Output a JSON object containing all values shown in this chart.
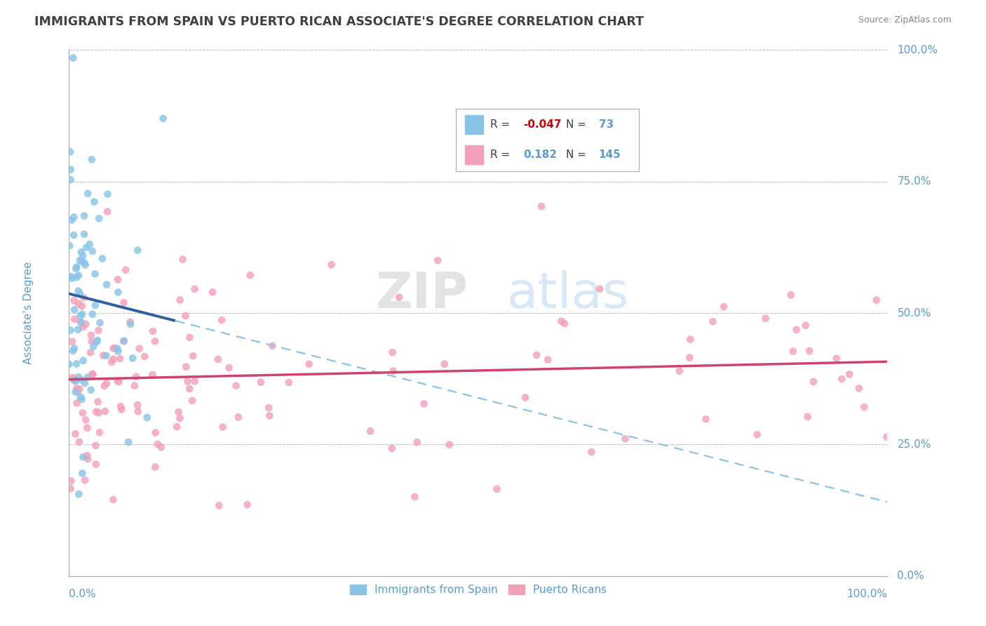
{
  "title": "IMMIGRANTS FROM SPAIN VS PUERTO RICAN ASSOCIATE'S DEGREE CORRELATION CHART",
  "source": "Source: ZipAtlas.com",
  "ylabel": "Associate's Degree",
  "legend_blue_r": "-0.047",
  "legend_blue_n": "73",
  "legend_pink_r": "0.182",
  "legend_pink_n": "145",
  "blue_color": "#89C4E8",
  "blue_line_solid_color": "#2E5FA3",
  "blue_line_dash_color": "#89C4E8",
  "pink_color": "#F4A0B8",
  "pink_line_color": "#D0436A",
  "background_color": "#FFFFFF",
  "grid_color": "#BBBBBB",
  "title_color": "#404040",
  "axis_label_color": "#5B9BD5",
  "watermark_color_zip": "#CCCCCC",
  "watermark_color_atlas": "#AACCEE",
  "legend_border_color": "#AAAAAA",
  "source_color": "#888888",
  "legend_r_label_color": "#404040",
  "legend_blue_r_color": "#CC0000",
  "legend_blue_n_color": "#5B9BD5",
  "legend_pink_r_color": "#5B9BD5",
  "legend_pink_n_color": "#5B9BD5"
}
